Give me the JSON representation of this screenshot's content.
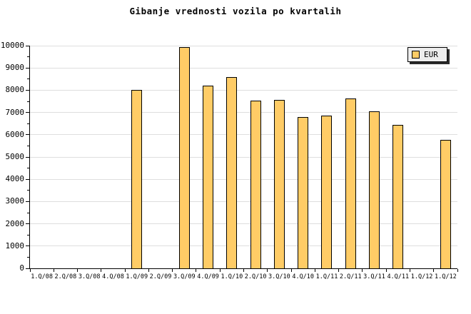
{
  "chart_data": {
    "type": "bar",
    "title": "Gibanje vrednosti vozila po kvartalih",
    "categories": [
      "1.Q/08",
      "2.Q/08",
      "3.Q/08",
      "4.Q/08",
      "1.Q/09",
      "2.Q/09",
      "3.Q/09",
      "4.Q/09",
      "1.Q/10",
      "2.Q/10",
      "3.Q/10",
      "4.Q/10",
      "1.Q/11",
      "2.Q/11",
      "3.Q/11",
      "4.Q/11",
      "1.Q/12",
      "1.Q/12"
    ],
    "series": [
      {
        "name": "EUR",
        "values": [
          0,
          0,
          0,
          0,
          8000,
          0,
          9950,
          8200,
          8600,
          7520,
          7570,
          6800,
          6860,
          7630,
          7060,
          6450,
          0,
          5780
        ]
      }
    ],
    "xlabel": "",
    "ylabel": "",
    "ylim": [
      0,
      10000
    ],
    "ytick_step": 1000,
    "yminor_step": 500,
    "yticks": [
      0,
      1000,
      2000,
      3000,
      4000,
      5000,
      6000,
      7000,
      8000,
      9000,
      10000
    ],
    "grid": "horizontal-major",
    "legend_position": "top-right",
    "colors": {
      "bar_fill": "#FFCC66",
      "bar_border": "#000000",
      "grid": "#DEDEDE",
      "axis": "#000000",
      "text": "#000000",
      "legend_bg": "#EDEDED",
      "legend_shadow": "#2B2B2B",
      "background": "#FFFFFF"
    }
  }
}
